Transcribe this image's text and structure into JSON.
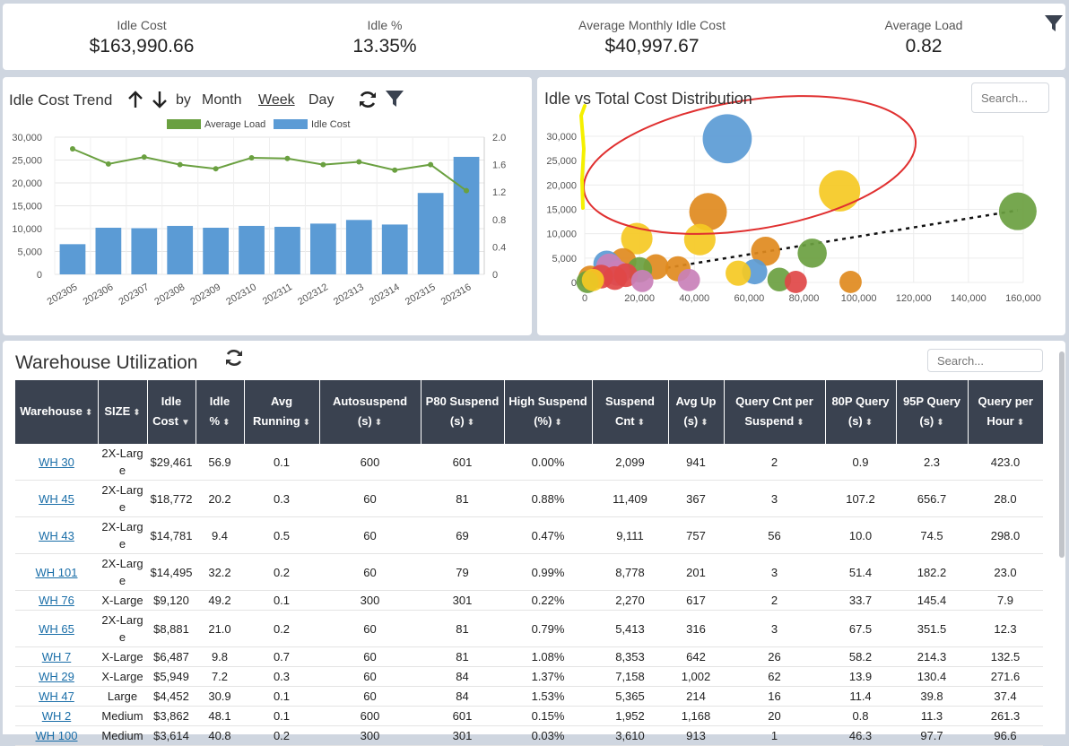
{
  "kpis": [
    {
      "label": "Idle Cost",
      "value": "$163,990.66"
    },
    {
      "label": "Idle %",
      "value": "13.35%"
    },
    {
      "label": "Average Monthly Idle Cost",
      "value": "$40,997.67"
    },
    {
      "label": "Average Load",
      "value": "0.82"
    }
  ],
  "trend": {
    "title": "Idle Cost Trend",
    "by_label": "by",
    "periods": [
      "Month",
      "Week",
      "Day"
    ],
    "active_period": "Week"
  },
  "scatter": {
    "title": "Idle vs Total Cost Distribution",
    "search_placeholder": "Search..."
  },
  "utilization": {
    "title": "Warehouse Utilization",
    "search_placeholder": "Search...",
    "columns": [
      "Warehouse",
      "SIZE",
      "Idle Cost",
      "Idle %",
      "Avg Running",
      "Autosuspend (s)",
      "P80 Suspend (s)",
      "High Suspend (%)",
      "Suspend Cnt",
      "Avg Up (s)",
      "Query Cnt per Suspend",
      "80P Query (s)",
      "95P Query (s)",
      "Query per Hour"
    ],
    "rows": [
      [
        "WH 30",
        "2X-Large",
        "$29,461",
        "56.9",
        "0.1",
        "600",
        "601",
        "0.00%",
        "2,099",
        "941",
        "2",
        "0.9",
        "2.3",
        "423.0"
      ],
      [
        "WH 45",
        "2X-Large",
        "$18,772",
        "20.2",
        "0.3",
        "60",
        "81",
        "0.88%",
        "11,409",
        "367",
        "3",
        "107.2",
        "656.7",
        "28.0"
      ],
      [
        "WH 43",
        "2X-Large",
        "$14,781",
        "9.4",
        "0.5",
        "60",
        "69",
        "0.47%",
        "9,111",
        "757",
        "56",
        "10.0",
        "74.5",
        "298.0"
      ],
      [
        "WH 101",
        "2X-Large",
        "$14,495",
        "32.2",
        "0.2",
        "60",
        "79",
        "0.99%",
        "8,778",
        "201",
        "3",
        "51.4",
        "182.2",
        "23.0"
      ],
      [
        "WH 76",
        "X-Large",
        "$9,120",
        "49.2",
        "0.1",
        "300",
        "301",
        "0.22%",
        "2,270",
        "617",
        "2",
        "33.7",
        "145.4",
        "7.9"
      ],
      [
        "WH 65",
        "2X-Large",
        "$8,881",
        "21.0",
        "0.2",
        "60",
        "81",
        "0.79%",
        "5,413",
        "316",
        "3",
        "67.5",
        "351.5",
        "12.3"
      ],
      [
        "WH 7",
        "X-Large",
        "$6,487",
        "9.8",
        "0.7",
        "60",
        "81",
        "1.08%",
        "8,353",
        "642",
        "26",
        "58.2",
        "214.3",
        "132.5"
      ],
      [
        "WH 29",
        "X-Large",
        "$5,949",
        "7.2",
        "0.3",
        "60",
        "84",
        "1.37%",
        "7,158",
        "1,002",
        "62",
        "13.9",
        "130.4",
        "271.6"
      ],
      [
        "WH 47",
        "Large",
        "$4,452",
        "30.9",
        "0.1",
        "60",
        "84",
        "1.53%",
        "5,365",
        "214",
        "16",
        "11.4",
        "39.8",
        "37.4"
      ],
      [
        "WH 2",
        "Medium",
        "$3,862",
        "48.1",
        "0.1",
        "600",
        "601",
        "0.15%",
        "1,952",
        "1,168",
        "20",
        "0.8",
        "11.3",
        "261.3"
      ],
      [
        "WH 100",
        "Medium",
        "$3,614",
        "40.8",
        "0.2",
        "300",
        "301",
        "0.03%",
        "3,610",
        "913",
        "1",
        "46.3",
        "97.7",
        "96.6"
      ]
    ]
  },
  "chart_data": [
    {
      "type": "bar",
      "title": "Idle Cost Trend",
      "categories": [
        "202305",
        "202306",
        "202307",
        "202308",
        "202309",
        "202310",
        "202311",
        "202312",
        "202313",
        "202314",
        "202315",
        "202316"
      ],
      "series": [
        {
          "name": "Idle Cost",
          "type": "bar",
          "axis": "left",
          "color": "#5b9bd5",
          "values": [
            6600,
            10200,
            10100,
            10600,
            10200,
            10600,
            10400,
            11100,
            11900,
            10900,
            17800,
            25700
          ]
        },
        {
          "name": "Average Load",
          "type": "line",
          "axis": "right",
          "color": "#6aa040",
          "values": [
            1.83,
            1.61,
            1.71,
            1.6,
            1.54,
            1.7,
            1.69,
            1.6,
            1.64,
            1.52,
            1.6,
            1.22
          ]
        }
      ],
      "y_left": {
        "ticks": [
          "0",
          "5,000",
          "10,000",
          "15,000",
          "20,000",
          "25,000",
          "30,000"
        ],
        "range": [
          0,
          30000
        ]
      },
      "y_right": {
        "ticks": [
          "0",
          "0.4",
          "0.8",
          "1.2",
          "1.6",
          "2.0"
        ],
        "range": [
          0,
          2
        ]
      }
    },
    {
      "type": "scatter",
      "title": "Idle vs Total Cost Distribution",
      "x_ticks": [
        "0",
        "20,000",
        "40,000",
        "60,000",
        "80,000",
        "100,000",
        "120,000",
        "140,000",
        "160,000"
      ],
      "x_range": [
        0,
        160000
      ],
      "y_ticks": [
        "0",
        "5,000",
        "10,000",
        "15,000",
        "20,000",
        "25,000",
        "30,000"
      ],
      "y_range": [
        0,
        30000
      ],
      "trendline": {
        "from": [
          30000,
          3000
        ],
        "to": [
          158000,
          14800
        ]
      },
      "points": [
        {
          "x": 52000,
          "y": 29500,
          "size": 17000,
          "color": "#5b9bd5"
        },
        {
          "x": 93000,
          "y": 18800,
          "size": 12000,
          "color": "#f5c923"
        },
        {
          "x": 45000,
          "y": 14500,
          "size": 10000,
          "color": "#e08a1e"
        },
        {
          "x": 158000,
          "y": 14600,
          "size": 10000,
          "color": "#6aa040"
        },
        {
          "x": 19000,
          "y": 9000,
          "size": 7000,
          "color": "#f5c923"
        },
        {
          "x": 42000,
          "y": 8800,
          "size": 7000,
          "color": "#f5c923"
        },
        {
          "x": 66000,
          "y": 6400,
          "size": 6000,
          "color": "#e08a1e"
        },
        {
          "x": 83000,
          "y": 6000,
          "size": 6000,
          "color": "#6aa040"
        },
        {
          "x": 14000,
          "y": 4300,
          "size": 5000,
          "color": "#e08a1e"
        },
        {
          "x": 8000,
          "y": 3800,
          "size": 5000,
          "color": "#5b9bd5"
        },
        {
          "x": 9000,
          "y": 3200,
          "size": 5000,
          "color": "#c980b8"
        },
        {
          "x": 26000,
          "y": 3200,
          "size": 4500,
          "color": "#e08a1e"
        },
        {
          "x": 34000,
          "y": 2800,
          "size": 4500,
          "color": "#e08a1e"
        },
        {
          "x": 20000,
          "y": 2600,
          "size": 4500,
          "color": "#6aa040"
        },
        {
          "x": 62000,
          "y": 2200,
          "size": 4500,
          "color": "#5b9bd5"
        },
        {
          "x": 56000,
          "y": 1900,
          "size": 4500,
          "color": "#f5c923"
        },
        {
          "x": 12000,
          "y": 1900,
          "size": 4500,
          "color": "#c980b8"
        },
        {
          "x": 15000,
          "y": 1500,
          "size": 4000,
          "color": "#e04646"
        },
        {
          "x": 2000,
          "y": 1000,
          "size": 4000,
          "color": "#e08a1e"
        },
        {
          "x": 6000,
          "y": 1200,
          "size": 4000,
          "color": "#e04646"
        },
        {
          "x": 11000,
          "y": 900,
          "size": 4000,
          "color": "#e04646"
        },
        {
          "x": 71000,
          "y": 600,
          "size": 4000,
          "color": "#6aa040"
        },
        {
          "x": 38000,
          "y": 500,
          "size": 3500,
          "color": "#c980b8"
        },
        {
          "x": 21000,
          "y": 300,
          "size": 3500,
          "color": "#c980b8"
        },
        {
          "x": 77000,
          "y": 100,
          "size": 3500,
          "color": "#e04646"
        },
        {
          "x": 97000,
          "y": 100,
          "size": 3500,
          "color": "#e08a1e"
        },
        {
          "x": 1000,
          "y": 100,
          "size": 3500,
          "color": "#6aa040"
        },
        {
          "x": 3000,
          "y": 500,
          "size": 3500,
          "color": "#f5c923"
        }
      ]
    }
  ]
}
